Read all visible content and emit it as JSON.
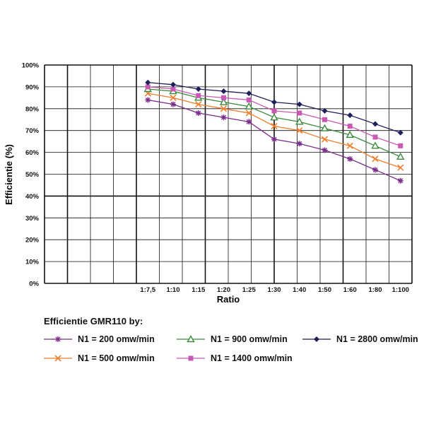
{
  "chart_data": {
    "type": "line",
    "xlabel": "Ratio",
    "ylabel": "Efficientie (%)",
    "categories": [
      "1:7,5",
      "1:10",
      "1:15",
      "1:20",
      "1:25",
      "1:30",
      "1:40",
      "1:50",
      "1:60",
      "1:80",
      "1:100"
    ],
    "ylim": [
      0,
      100
    ],
    "yticks": [
      "0%",
      "10%",
      "20%",
      "30%",
      "40%",
      "50%",
      "60%",
      "70%",
      "80%",
      "90%",
      "100%"
    ],
    "grid": true,
    "legend_title": "Efficientie GMR110 by:",
    "legend_position": "bottom",
    "series": [
      {
        "name": "N1 = 200 omw/min",
        "color": "#7b2d8b",
        "marker": "star",
        "values": [
          84,
          82,
          78,
          76,
          74,
          66,
          64,
          61,
          57,
          52,
          47
        ]
      },
      {
        "name": "N1 = 500 omw/min",
        "color": "#ee7d2c",
        "marker": "x",
        "values": [
          87,
          85,
          82,
          80,
          78,
          72,
          70,
          66,
          63,
          57,
          53
        ]
      },
      {
        "name": "N1 = 900 omw/min",
        "color": "#3b8a3b",
        "marker": "triangle",
        "values": [
          89,
          88,
          85,
          83,
          81,
          76,
          74,
          71,
          68,
          63,
          58
        ]
      },
      {
        "name": "N1 = 1400 omw/min",
        "color": "#c85ab4",
        "marker": "square",
        "values": [
          90,
          89,
          86,
          85,
          84,
          79,
          78,
          75,
          72,
          67,
          63
        ]
      },
      {
        "name": "N1 = 2800 omw/min",
        "color": "#1f1f5c",
        "marker": "diamond",
        "values": [
          92,
          91,
          89,
          88,
          87,
          83,
          82,
          79,
          77,
          73,
          69
        ]
      }
    ]
  }
}
